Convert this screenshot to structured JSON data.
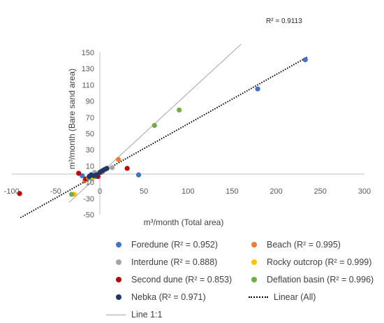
{
  "chart_data": {
    "type": "scatter",
    "xlabel": "m³/month (Total area)",
    "ylabel": "m³/month (Bare sand area)",
    "xlim": [
      -100,
      300
    ],
    "ylim": [
      -50,
      150
    ],
    "x_ticks": [
      "-100",
      "-50",
      "0",
      "50",
      "100",
      "150",
      "200",
      "250",
      "300"
    ],
    "y_ticks": [
      "-50",
      "-30",
      "-10",
      "10",
      "30",
      "50",
      "70",
      "90",
      "110",
      "130",
      "150"
    ],
    "grid": false,
    "legend_position": "bottom",
    "annotations": [
      {
        "text": "R² = 0.9113"
      }
    ],
    "series": [
      {
        "name": "Foredune (R² = 0.952)",
        "color": "#4472C4",
        "points": [
          [
            233,
            141
          ],
          [
            179,
            105
          ],
          [
            44,
            -1
          ],
          [
            -20,
            -2
          ],
          [
            1,
            3
          ],
          [
            4,
            5
          ],
          [
            -5,
            -3
          ]
        ]
      },
      {
        "name": "Beach (R² = 0.995)",
        "color": "#ED7D31",
        "points": [
          [
            21,
            18
          ],
          [
            8,
            7
          ],
          [
            -17,
            -8
          ],
          [
            -3,
            -2
          ],
          [
            2,
            2
          ]
        ]
      },
      {
        "name": "Interdune (R² = 0.888)",
        "color": "#A5A5A5",
        "points": [
          [
            14,
            8
          ],
          [
            -6,
            2
          ],
          [
            -10,
            -5
          ],
          [
            3,
            3
          ]
        ]
      },
      {
        "name": "Rocky outcrop (R² = 0.999)",
        "color": "#FFC000",
        "points": [
          [
            -29,
            -25
          ],
          [
            -8,
            -4
          ],
          [
            5,
            5
          ]
        ]
      },
      {
        "name": "Second dune (R² = 0.853)",
        "color": "#C00000",
        "points": [
          [
            -91,
            -24
          ],
          [
            -24,
            1
          ],
          [
            31,
            7
          ],
          [
            -2,
            -3
          ],
          [
            -16,
            -6
          ]
        ]
      },
      {
        "name": "Deflation basin (R² = 0.996)",
        "color": "#70AD47",
        "points": [
          [
            90,
            79
          ],
          [
            62,
            60
          ],
          [
            -32,
            -25
          ],
          [
            -13,
            -5
          ]
        ]
      },
      {
        "name": "Nebka (R² = 0.971)",
        "color": "#1F3864",
        "points": [
          [
            -10,
            -1
          ],
          [
            -4,
            -1
          ],
          [
            0,
            2
          ],
          [
            3,
            4
          ],
          [
            6,
            6
          ],
          [
            8,
            7
          ],
          [
            -12,
            -3
          ],
          [
            -7,
            -2
          ]
        ]
      }
    ],
    "trendline": {
      "name": "Linear (All)",
      "style": "dotted",
      "color": "#000000",
      "x_range": [
        -90,
        235
      ],
      "slope": 0.609,
      "intercept": 1.0
    },
    "reference_line": {
      "name": "Line 1:1",
      "color": "#A6A6A6",
      "x_range": [
        -35,
        160
      ],
      "slope": 1,
      "intercept": 0
    }
  },
  "legend_order": [
    {
      "key": "s0",
      "label": "Foredune (R² = 0.952)",
      "kind": "marker",
      "color": "#4472C4"
    },
    {
      "key": "s1",
      "label": "Beach (R² = 0.995)",
      "kind": "marker",
      "color": "#ED7D31"
    },
    {
      "key": "s2",
      "label": "Interdune (R² = 0.888)",
      "kind": "marker",
      "color": "#A5A5A5"
    },
    {
      "key": "s3",
      "label": "Rocky outcrop (R² = 0.999)",
      "kind": "marker",
      "color": "#FFC000"
    },
    {
      "key": "s4",
      "label": "Second dune (R² = 0.853)",
      "kind": "marker",
      "color": "#C00000"
    },
    {
      "key": "s5",
      "label": "Deflation basin (R² = 0.996)",
      "kind": "marker",
      "color": "#70AD47"
    },
    {
      "key": "s6",
      "label": "Nebka (R² = 0.971)",
      "kind": "marker",
      "color": "#1F3864"
    },
    {
      "key": "trend",
      "label": "Linear (All)",
      "kind": "dotted",
      "color": "#000000"
    },
    {
      "key": "ref",
      "label": "Line 1:1",
      "kind": "solid",
      "color": "#A6A6A6"
    }
  ]
}
